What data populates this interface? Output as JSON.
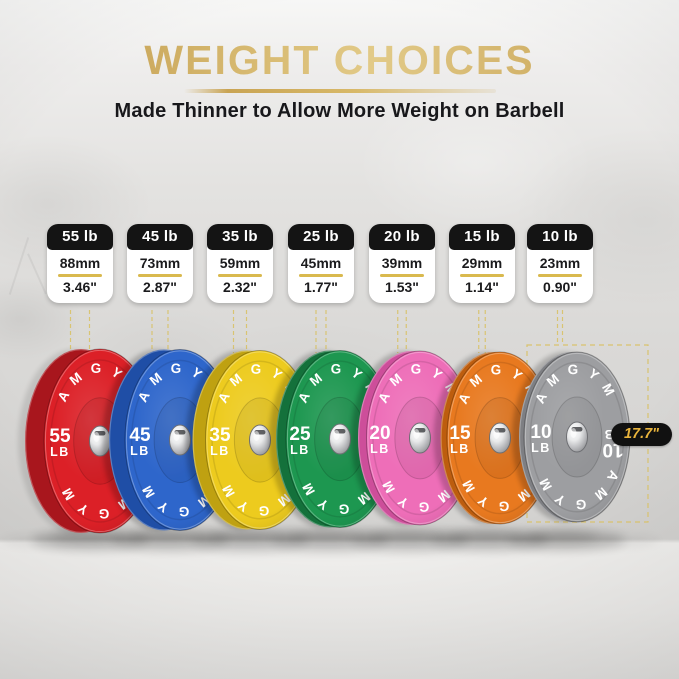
{
  "header": {
    "title": "WEIGHT CHOICES",
    "subtitle": "Made Thinner to Allow More Weight on Barbell"
  },
  "brand": "AMGYM",
  "diameter_label": "17.7\"",
  "plates": [
    {
      "label": "55 lb",
      "mm": "88mm",
      "inch": "3.46\"",
      "num": "55",
      "unit": "LB",
      "face": "#dc2027",
      "rim": "#a8161d"
    },
    {
      "label": "45 lb",
      "mm": "73mm",
      "inch": "2.87\"",
      "num": "45",
      "unit": "LB",
      "face": "#2e66cb",
      "rim": "#1f4ea6"
    },
    {
      "label": "35 lb",
      "mm": "59mm",
      "inch": "2.32\"",
      "num": "35",
      "unit": "LB",
      "face": "#edcb1e",
      "rim": "#bfa111"
    },
    {
      "label": "25 lb",
      "mm": "45mm",
      "inch": "1.77\"",
      "num": "25",
      "unit": "LB",
      "face": "#1d9750",
      "rim": "#14713b"
    },
    {
      "label": "20 lb",
      "mm": "39mm",
      "inch": "1.53\"",
      "num": "20",
      "unit": "LB",
      "face": "#ee6eb8",
      "rim": "#cd4e9a"
    },
    {
      "label": "15 lb",
      "mm": "29mm",
      "inch": "1.14\"",
      "num": "15",
      "unit": "LB",
      "face": "#e8791f",
      "rim": "#bd5d0e"
    },
    {
      "label": "10 lb",
      "mm": "23mm",
      "inch": "0.90\"",
      "num": "10",
      "unit": "LB",
      "face": "#9d9ea1",
      "rim": "#7e7f83"
    }
  ],
  "colors": {
    "gold_title": "#d2b268",
    "gold_dash": "#d9c268",
    "card_divider": "#d9b94e",
    "pill_bg": "#111111",
    "pill_text": "#e9b43c"
  }
}
